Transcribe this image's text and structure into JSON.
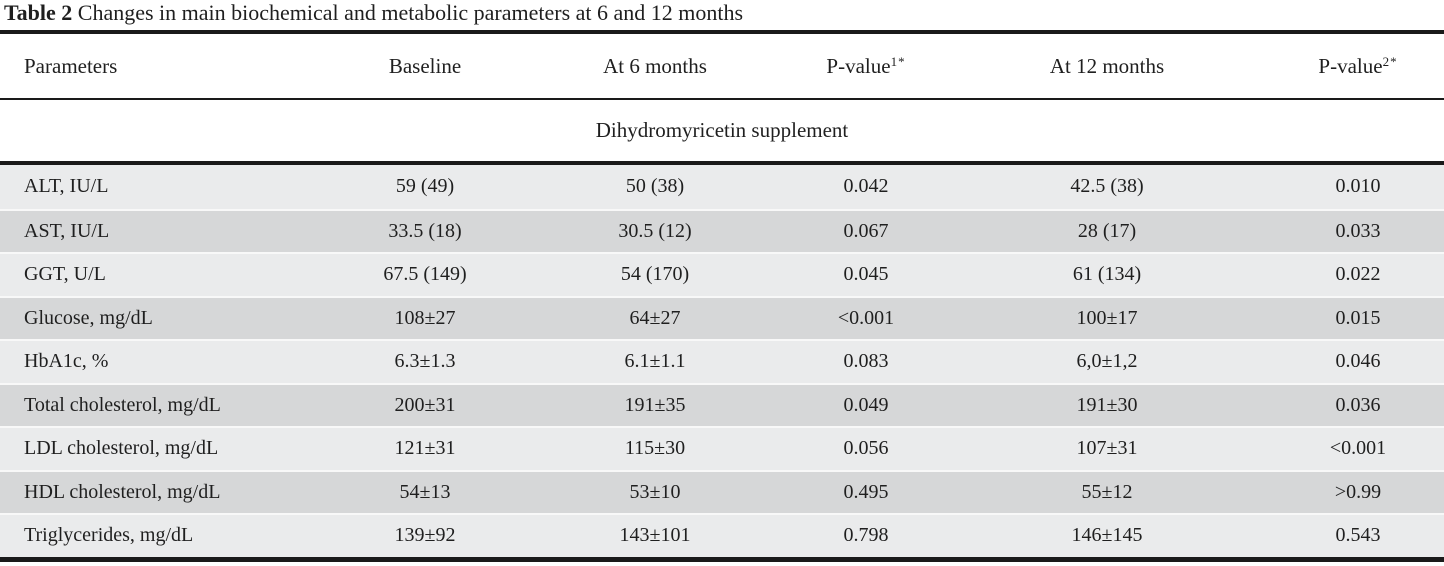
{
  "title": {
    "label": "Table 2",
    "caption": " Changes in main biochemical and metabolic parameters at 6 and 12 months"
  },
  "columns": [
    {
      "label": "Parameters",
      "sup": ""
    },
    {
      "label": "Baseline",
      "sup": ""
    },
    {
      "label": "At 6 months",
      "sup": ""
    },
    {
      "label": "P-value",
      "sup": "1*"
    },
    {
      "label": "At 12 months",
      "sup": ""
    },
    {
      "label": "P-value",
      "sup": "2*"
    }
  ],
  "group_header": "Dihydromyricetin supplement",
  "rows": [
    {
      "cells": [
        "ALT, IU/L",
        "59 (49)",
        "50 (38)",
        "0.042",
        "42.5 (38)",
        "0.010"
      ]
    },
    {
      "cells": [
        "AST, IU/L",
        "33.5 (18)",
        "30.5 (12)",
        "0.067",
        "28 (17)",
        "0.033"
      ]
    },
    {
      "cells": [
        "GGT, U/L",
        "67.5 (149)",
        "54 (170)",
        "0.045",
        "61 (134)",
        "0.022"
      ]
    },
    {
      "cells": [
        "Glucose, mg/dL",
        "108±27",
        "64±27",
        "<0.001",
        "100±17",
        "0.015"
      ]
    },
    {
      "cells": [
        "HbA1c, %",
        "6.3±1.3",
        "6.1±1.1",
        "0.083",
        "6,0±1,2",
        "0.046"
      ]
    },
    {
      "cells": [
        "Total cholesterol, mg/dL",
        "200±31",
        "191±35",
        "0.049",
        "191±30",
        "0.036"
      ]
    },
    {
      "cells": [
        "LDL cholesterol, mg/dL",
        "121±31",
        "115±30",
        "0.056",
        "107±31",
        "<0.001"
      ]
    },
    {
      "cells": [
        "HDL cholesterol, mg/dL",
        "54±13",
        "53±10",
        "0.495",
        "55±12",
        ">0.99"
      ]
    },
    {
      "cells": [
        "Triglycerides, mg/dL",
        "139±92",
        "143±101",
        "0.798",
        "146±145",
        "0.543"
      ]
    }
  ],
  "colors": {
    "row_light": "#eaebec",
    "row_dark": "#d6d7d8",
    "rule": "#1a1a1a",
    "text": "#1f1f1f",
    "background": "#ffffff"
  }
}
